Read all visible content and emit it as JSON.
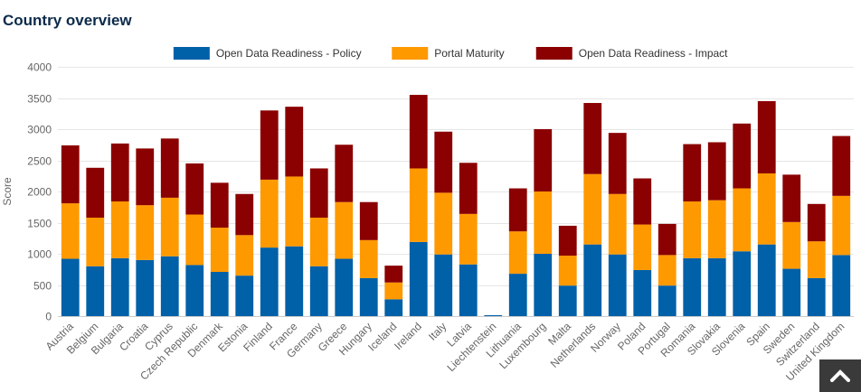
{
  "header": {
    "title": "Country overview"
  },
  "scroll_top": {
    "icon": "chevron-up-icon"
  },
  "chart_data": {
    "type": "bar",
    "stacked": true,
    "ylabel": "Score",
    "xlabel": "",
    "ylim": [
      0,
      4000
    ],
    "yticks": [
      0,
      500,
      1000,
      1500,
      2000,
      2500,
      3000,
      3500,
      4000
    ],
    "grid": true,
    "legend_position": "top",
    "categories": [
      "Austria",
      "Belgium",
      "Bulgaria",
      "Croatia",
      "Cyprus",
      "Czech Republic",
      "Denmark",
      "Estonia",
      "Finland",
      "France",
      "Germany",
      "Greece",
      "Hungary",
      "Iceland",
      "Ireland",
      "Italy",
      "Latvia",
      "Liechtenstein",
      "Lithuania",
      "Luxembourg",
      "Malta",
      "Netherlands",
      "Norway",
      "Poland",
      "Portugal",
      "Romania",
      "Slovakia",
      "Slovenia",
      "Spain",
      "Sweden",
      "Switzerland",
      "United Kingdom"
    ],
    "series": [
      {
        "name": "Open Data Readiness - Policy",
        "color": "#0060a8",
        "values": [
          920,
          800,
          930,
          900,
          960,
          820,
          710,
          650,
          1100,
          1120,
          800,
          920,
          610,
          270,
          1190,
          990,
          830,
          15,
          680,
          1000,
          490,
          1150,
          990,
          740,
          490,
          930,
          930,
          1040,
          1150,
          760,
          610,
          980
        ]
      },
      {
        "name": "Portal Maturity",
        "color": "#ff9900",
        "values": [
          890,
          780,
          910,
          880,
          940,
          810,
          710,
          650,
          1090,
          1120,
          780,
          910,
          610,
          270,
          1180,
          990,
          810,
          0,
          680,
          1000,
          480,
          1130,
          970,
          730,
          490,
          910,
          930,
          1010,
          1140,
          750,
          590,
          950
        ]
      },
      {
        "name": "Open Data Readiness - Impact",
        "color": "#8b0000",
        "values": [
          930,
          800,
          930,
          910,
          950,
          820,
          720,
          660,
          1110,
          1120,
          790,
          920,
          610,
          270,
          1180,
          980,
          820,
          0,
          690,
          1000,
          480,
          1140,
          980,
          740,
          500,
          920,
          930,
          1040,
          1160,
          760,
          600,
          960
        ]
      }
    ]
  }
}
